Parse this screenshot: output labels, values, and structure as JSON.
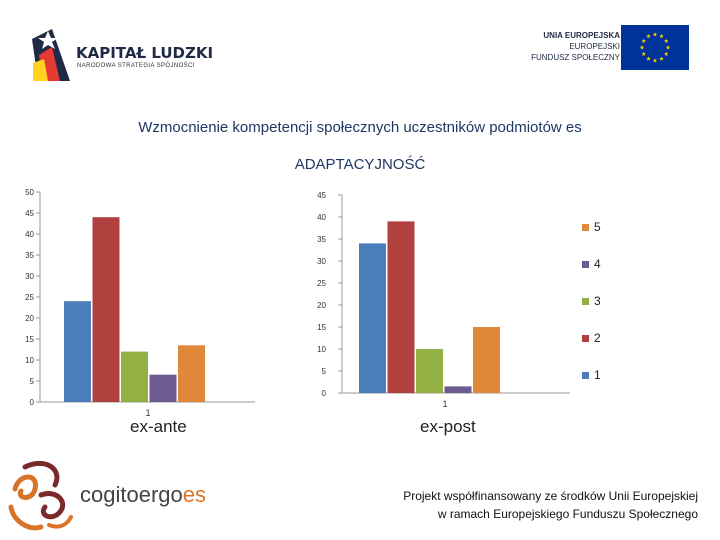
{
  "header": {
    "left_logo": {
      "title": "KAPITAŁ LUDZKI",
      "subtitle": "NARODOWA STRATEGIA SPÓJNOŚCI",
      "icon": "kapital-ludzki-logo-icon"
    },
    "right_logo": {
      "lines": [
        "UNIA EUROPEJSKA",
        "EUROPEJSKI",
        "FUNDUSZ SPOŁECZNY"
      ],
      "icon": "eu-flag-icon",
      "colors": {
        "flag_blue": "#003399",
        "star_yellow": "#ffcc00"
      }
    }
  },
  "title": "Wzmocnienie kompetencji społecznych uczestników podmiotów es",
  "subtitle": "ADAPTACYJNOŚĆ",
  "chart_data": [
    {
      "type": "bar",
      "categories": [
        "1"
      ],
      "category_label": "ex-ante",
      "series": [
        {
          "name": "1",
          "values": [
            24
          ],
          "color": "#4a7ebb"
        },
        {
          "name": "2",
          "values": [
            44
          ],
          "color": "#b0413e"
        },
        {
          "name": "3",
          "values": [
            12
          ],
          "color": "#93b044"
        },
        {
          "name": "4",
          "values": [
            6.5
          ],
          "color": "#6d5a91"
        },
        {
          "name": "5",
          "values": [
            13.5
          ],
          "color": "#e0883a"
        }
      ],
      "yticks": [
        0,
        5,
        10,
        15,
        20,
        25,
        30,
        35,
        40,
        45,
        50
      ],
      "ylim": [
        0,
        50
      ],
      "grid": false
    },
    {
      "type": "bar",
      "categories": [
        "1"
      ],
      "category_label": "ex-post",
      "series": [
        {
          "name": "1",
          "values": [
            34
          ],
          "color": "#4a7ebb"
        },
        {
          "name": "2",
          "values": [
            39
          ],
          "color": "#b0413e"
        },
        {
          "name": "3",
          "values": [
            10
          ],
          "color": "#93b044"
        },
        {
          "name": "4",
          "values": [
            1.5
          ],
          "color": "#6d5a91"
        },
        {
          "name": "5",
          "values": [
            15
          ],
          "color": "#e0883a"
        }
      ],
      "yticks": [
        0,
        5,
        10,
        15,
        20,
        25,
        30,
        35,
        40,
        45
      ],
      "ylim": [
        0,
        45
      ],
      "grid": false,
      "legend": {
        "placement": "right",
        "order": [
          "5",
          "4",
          "3",
          "2",
          "1"
        ]
      }
    }
  ],
  "footer": {
    "brand": {
      "main": "cogitoergo",
      "tail": "es",
      "icon": "cogito-swirl-icon",
      "accent": "#d9732a"
    },
    "funding_lines": [
      "Projekt  współfinansowany ze środków Unii Europejskiej",
      "w ramach Europejskiego Funduszu Społecznego"
    ]
  }
}
